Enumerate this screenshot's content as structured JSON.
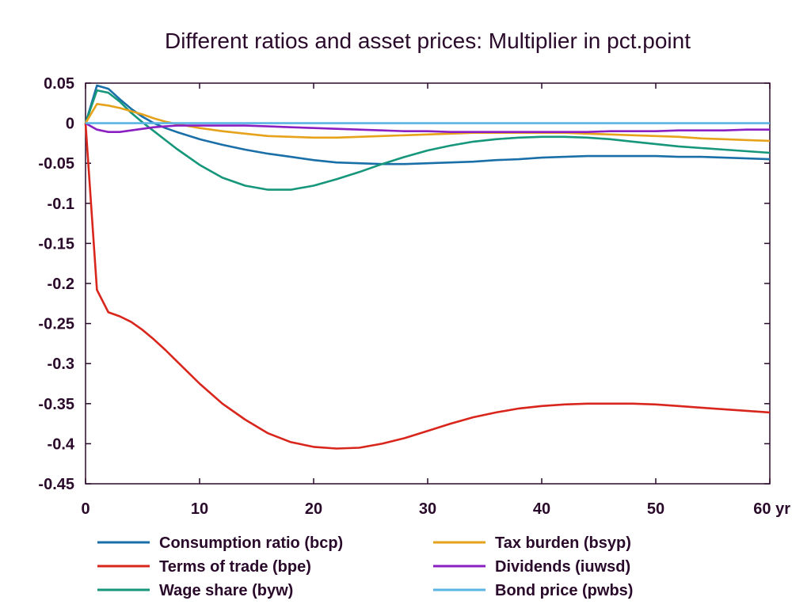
{
  "chart_data": {
    "type": "line",
    "title": "Different ratios and asset prices: Multiplier in pct.point",
    "xlabel": "",
    "ylabel": "",
    "x_unit_label": "yr",
    "xlim": [
      0,
      60
    ],
    "ylim": [
      -0.45,
      0.05
    ],
    "x_ticks": [
      0,
      10,
      20,
      30,
      40,
      50,
      60
    ],
    "x_tick_labels": [
      "0",
      "10",
      "20",
      "30",
      "40",
      "50",
      "60 yr"
    ],
    "y_ticks": [
      0.05,
      0,
      -0.05,
      -0.1,
      -0.15,
      -0.2,
      -0.25,
      -0.3,
      -0.35,
      -0.4,
      -0.45
    ],
    "y_tick_labels": [
      "0.05",
      "0",
      "-0.05",
      "-0.1",
      "-0.15",
      "-0.2",
      "-0.25",
      "-0.3",
      "-0.35",
      "-0.4",
      "-0.45"
    ],
    "grid": false,
    "legend_position": "bottom",
    "x": [
      0,
      1,
      2,
      3,
      4,
      5,
      6,
      7,
      8,
      10,
      12,
      14,
      16,
      18,
      20,
      22,
      24,
      26,
      28,
      30,
      32,
      34,
      36,
      38,
      40,
      42,
      44,
      46,
      48,
      50,
      52,
      54,
      56,
      58,
      60
    ],
    "series": [
      {
        "name": "Consumption ratio (bcp)",
        "color": "#1a6fa8",
        "values": [
          0,
          0.047,
          0.043,
          0.03,
          0.018,
          0.008,
          0.0,
          -0.006,
          -0.011,
          -0.02,
          -0.027,
          -0.033,
          -0.038,
          -0.042,
          -0.046,
          -0.049,
          -0.05,
          -0.051,
          -0.051,
          -0.05,
          -0.049,
          -0.048,
          -0.046,
          -0.045,
          -0.043,
          -0.042,
          -0.041,
          -0.041,
          -0.041,
          -0.041,
          -0.042,
          -0.042,
          -0.043,
          -0.044,
          -0.045
        ]
      },
      {
        "name": "Terms of trade (bpe)",
        "color": "#d9261c",
        "values": [
          0,
          -0.208,
          -0.236,
          -0.241,
          -0.248,
          -0.258,
          -0.27,
          -0.283,
          -0.297,
          -0.325,
          -0.35,
          -0.37,
          -0.387,
          -0.398,
          -0.404,
          -0.406,
          -0.405,
          -0.4,
          -0.393,
          -0.384,
          -0.375,
          -0.367,
          -0.361,
          -0.356,
          -0.353,
          -0.351,
          -0.35,
          -0.35,
          -0.35,
          -0.351,
          -0.353,
          -0.355,
          -0.357,
          -0.359,
          -0.361
        ]
      },
      {
        "name": "Wage share (byw)",
        "color": "#16967a",
        "values": [
          0,
          0.041,
          0.038,
          0.027,
          0.013,
          0.001,
          -0.01,
          -0.021,
          -0.032,
          -0.052,
          -0.068,
          -0.078,
          -0.083,
          -0.083,
          -0.078,
          -0.07,
          -0.061,
          -0.051,
          -0.042,
          -0.034,
          -0.028,
          -0.023,
          -0.02,
          -0.018,
          -0.017,
          -0.017,
          -0.018,
          -0.02,
          -0.023,
          -0.026,
          -0.029,
          -0.031,
          -0.033,
          -0.035,
          -0.037
        ]
      },
      {
        "name": "Tax burden (bsyp)",
        "color": "#e6a21a",
        "values": [
          0,
          0.024,
          0.022,
          0.019,
          0.015,
          0.011,
          0.006,
          0.002,
          -0.001,
          -0.006,
          -0.01,
          -0.013,
          -0.016,
          -0.017,
          -0.018,
          -0.018,
          -0.017,
          -0.016,
          -0.015,
          -0.014,
          -0.013,
          -0.012,
          -0.012,
          -0.012,
          -0.012,
          -0.012,
          -0.013,
          -0.014,
          -0.015,
          -0.016,
          -0.017,
          -0.019,
          -0.02,
          -0.021,
          -0.022
        ]
      },
      {
        "name": "Dividends (iuwsd)",
        "color": "#8a1fc2",
        "values": [
          0,
          -0.008,
          -0.011,
          -0.011,
          -0.009,
          -0.007,
          -0.005,
          -0.004,
          -0.003,
          -0.003,
          -0.003,
          -0.003,
          -0.004,
          -0.005,
          -0.006,
          -0.007,
          -0.008,
          -0.009,
          -0.01,
          -0.01,
          -0.011,
          -0.011,
          -0.011,
          -0.011,
          -0.011,
          -0.011,
          -0.011,
          -0.01,
          -0.01,
          -0.01,
          -0.009,
          -0.009,
          -0.009,
          -0.008,
          -0.008
        ]
      },
      {
        "name": "Bond price (pwbs)",
        "color": "#5ab4e5",
        "values": [
          0,
          0,
          0,
          0,
          0,
          0,
          0,
          0,
          0,
          0,
          0,
          0,
          0,
          0,
          0,
          0,
          0,
          0,
          0,
          0,
          0,
          0,
          0,
          0,
          0,
          0,
          0,
          0,
          0,
          0,
          0,
          0,
          0,
          0,
          0
        ]
      }
    ]
  }
}
